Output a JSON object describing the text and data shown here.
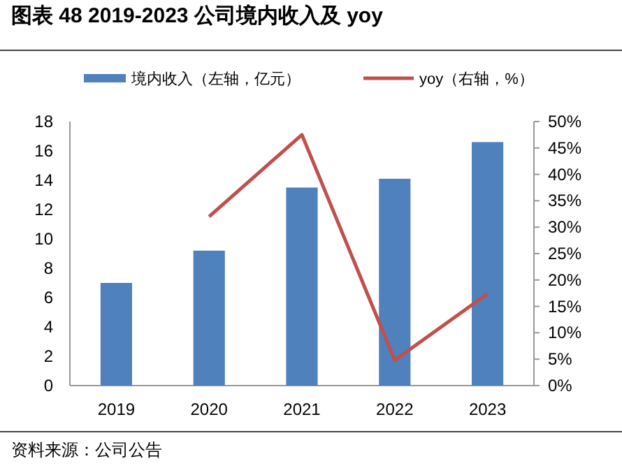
{
  "chart_data": {
    "type": "bar",
    "title": "图表 48 2019-2023 公司境内收入及 yoy",
    "categories": [
      "2019",
      "2020",
      "2021",
      "2022",
      "2023"
    ],
    "series": [
      {
        "name": "境内收入（左轴，亿元）",
        "color": "#4f81bd",
        "values": [
          7.0,
          9.2,
          13.5,
          14.1,
          16.6
        ]
      },
      {
        "name": "yoy（右轴，%）",
        "type": "line",
        "axis": "y2",
        "color": "#c0504d",
        "values": [
          null,
          32.0,
          47.5,
          4.8,
          17.4
        ]
      }
    ],
    "ylim": [
      0,
      18
    ],
    "yticks": [
      0,
      2,
      4,
      6,
      8,
      10,
      12,
      14,
      16,
      18
    ],
    "y2lim": [
      0,
      50
    ],
    "y2ticks": [
      {
        "value": 0,
        "label": "0%"
      },
      {
        "value": 5,
        "label": "5%"
      },
      {
        "value": 10,
        "label": "10%"
      },
      {
        "value": 15,
        "label": "15%"
      },
      {
        "value": 20,
        "label": "20%"
      },
      {
        "value": 25,
        "label": "25%"
      },
      {
        "value": 30,
        "label": "30%"
      },
      {
        "value": 35,
        "label": "35%"
      },
      {
        "value": 40,
        "label": "40%"
      },
      {
        "value": 45,
        "label": "45%"
      },
      {
        "value": 50,
        "label": "50%"
      }
    ],
    "legend": "top",
    "grid": false,
    "marker": "none",
    "annotations": [
      "资料来源：公司公告"
    ]
  }
}
